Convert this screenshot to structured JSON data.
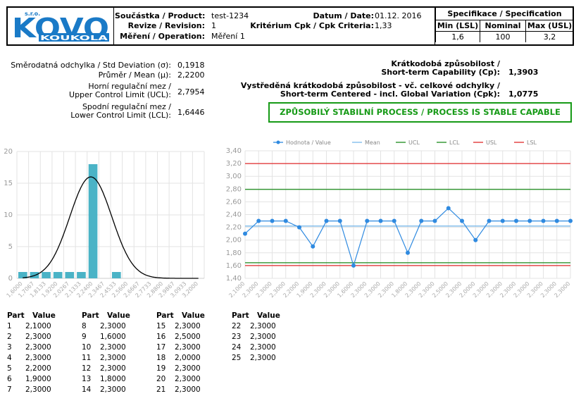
{
  "logo": {
    "prefix": "s.r.o.",
    "main": "KOVO",
    "sub": "KOUKOLA"
  },
  "header": {
    "product_label": "Součástka / Product:",
    "product": "test-1234",
    "revision_label": "Revize / Revision:",
    "revision": "1",
    "operation_label": "Měření / Operation:",
    "operation": "Měření 1",
    "date_label": "Datum / Date:",
    "date": "01.12. 2016",
    "cpk_label": "Kritérium Cpk / Cpk Criteria:",
    "cpk": "1,33"
  },
  "spec": {
    "title": "Specifikace / Specification",
    "min_label": "Min (LSL)",
    "nominal_label": "Nominal",
    "max_label": "Max (USL)",
    "min": "1,6",
    "nominal": "100",
    "max": "3,2"
  },
  "stats": {
    "std_label": "Směrodatná odchylka / Std Deviation (σ):",
    "std": "0,1918",
    "mean_label": "Průměr / Mean (μ):",
    "mean": "2,2200",
    "ucl_label1": "Horní regulační mez /",
    "ucl_label2": "Upper Control Limit (UCL):",
    "ucl": "2,7954",
    "lcl_label1": "Spodní regulační mez /",
    "lcl_label2": "Lower Control Limit (LCL):",
    "lcl": "1,6446"
  },
  "capability": {
    "cp_label1": "Krátkodobá způsobilost /",
    "cp_label2": "Short-term Capability (Cp):",
    "cp": "1,3903",
    "cpk_label1": "Vystředěná krátkodobá způsobilost - vč. celkové odchylky /",
    "cpk_label2": "Short-term Centered - incl. Global Variation (Cpk):",
    "cpk": "1,0775",
    "status": "ZPŮSOBILÝ STABILNÍ PROCESS / PROCESS IS STABLE CAPABLE"
  },
  "colors": {
    "bar": "#4ab3c6",
    "curve": "#000000",
    "value_line": "#2f8ae0",
    "mean": "#7ab8ea",
    "ucl": "#1a8a1a",
    "lcl": "#1a8a1a",
    "usl": "#e0282a",
    "lsl": "#e0282a",
    "status": "#169a16"
  },
  "chart_data": [
    {
      "type": "bar",
      "categories": [
        "1,6000",
        "1,7067",
        "1,8133",
        "1,9200",
        "2,0267",
        "2,1333",
        "2,2400",
        "2,3467",
        "2,4533",
        "2,5600",
        "2,6667",
        "2,7733",
        "2,8800",
        "2,9867",
        "3,0933",
        "3,2000"
      ],
      "values": [
        1,
        1,
        1,
        1,
        1,
        1,
        18,
        0,
        1,
        0,
        0,
        0,
        0,
        0,
        0,
        0
      ],
      "ylim": [
        0,
        20
      ],
      "yticks": [
        "0",
        "5",
        "10",
        "15",
        "20"
      ],
      "curve": "normal fit, mean 2,22, std 0,1918, peak 16"
    },
    {
      "type": "line",
      "legend": [
        "Hodnota / Value",
        "Mean",
        "UCL",
        "LCL",
        "USL",
        "LSL"
      ],
      "x": [
        "2,1000",
        "2,3000",
        "2,3000",
        "2,3000",
        "2,2000",
        "1,9000",
        "2,3000",
        "2,3000",
        "1,6000",
        "2,3000",
        "2,3000",
        "2,3000",
        "1,8000",
        "2,3000",
        "2,3000",
        "2,5000",
        "2,3000",
        "2,0000",
        "2,3000",
        "2,3000",
        "2,3000",
        "2,3000",
        "2,3000",
        "2,3000",
        "2,3000"
      ],
      "values": [
        2.1,
        2.3,
        2.3,
        2.3,
        2.2,
        1.9,
        2.3,
        2.3,
        1.6,
        2.3,
        2.3,
        2.3,
        1.8,
        2.3,
        2.3,
        2.5,
        2.3,
        2.0,
        2.3,
        2.3,
        2.3,
        2.3,
        2.3,
        2.3,
        2.3
      ],
      "mean": 2.22,
      "ucl": 2.7954,
      "lcl": 1.6446,
      "usl": 3.2,
      "lsl": 1.6,
      "ylim": [
        1.4,
        3.4
      ],
      "yticks": [
        "1,40",
        "1,60",
        "1,80",
        "2,00",
        "2,20",
        "2,40",
        "2,60",
        "2,80",
        "3,00",
        "3,20",
        "3,40"
      ]
    }
  ],
  "table": {
    "part_header": "Part",
    "value_header": "Value",
    "rows": [
      [
        "1",
        "2,1000"
      ],
      [
        "2",
        "2,3000"
      ],
      [
        "3",
        "2,3000"
      ],
      [
        "4",
        "2,3000"
      ],
      [
        "5",
        "2,2000"
      ],
      [
        "6",
        "1,9000"
      ],
      [
        "7",
        "2,3000"
      ],
      [
        "8",
        "2,3000"
      ],
      [
        "9",
        "1,6000"
      ],
      [
        "10",
        "2,3000"
      ],
      [
        "11",
        "2,3000"
      ],
      [
        "12",
        "2,3000"
      ],
      [
        "13",
        "1,8000"
      ],
      [
        "14",
        "2,3000"
      ],
      [
        "15",
        "2,3000"
      ],
      [
        "16",
        "2,5000"
      ],
      [
        "17",
        "2,3000"
      ],
      [
        "18",
        "2,0000"
      ],
      [
        "19",
        "2,3000"
      ],
      [
        "20",
        "2,3000"
      ],
      [
        "21",
        "2,3000"
      ],
      [
        "22",
        "2,3000"
      ],
      [
        "23",
        "2,3000"
      ],
      [
        "24",
        "2,3000"
      ],
      [
        "25",
        "2,3000"
      ]
    ]
  }
}
